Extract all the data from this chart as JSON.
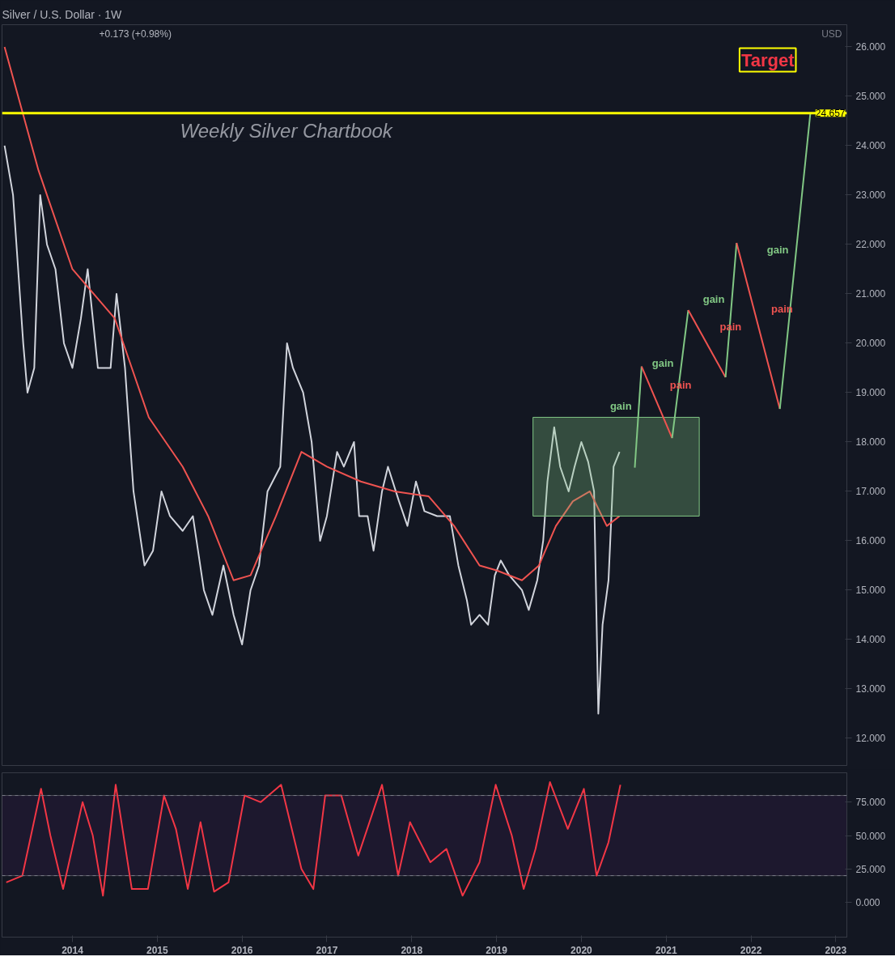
{
  "chart_data": [
    {
      "type": "line",
      "title": "Silver / U.S. Dollar · 1W",
      "xlim": [
        2013.17,
        2023.13
      ],
      "ylim": [
        11.45,
        26.45
      ],
      "xticks": [
        2014,
        2015,
        2016,
        2017,
        2018,
        2019,
        2020,
        2021,
        2022,
        2023
      ],
      "yticks": [
        {
          "value": 12,
          "label": "12.000"
        },
        {
          "value": 13,
          "label": "13.000"
        },
        {
          "value": 14,
          "label": "14.000"
        },
        {
          "value": 15,
          "label": "15.000"
        },
        {
          "value": 16,
          "label": "16.000"
        },
        {
          "value": 17,
          "label": "17.000"
        },
        {
          "value": 18,
          "label": "18.000"
        },
        {
          "value": 19,
          "label": "19.000"
        },
        {
          "value": 20,
          "label": "20.000"
        },
        {
          "value": 21,
          "label": "21.000"
        },
        {
          "value": 22,
          "label": "22.000"
        },
        {
          "value": 23,
          "label": "23.000"
        },
        {
          "value": 24,
          "label": "24.000"
        },
        {
          "value": 25,
          "label": "25.000"
        },
        {
          "value": 26,
          "label": "26.000"
        }
      ],
      "tick_labels": "y",
      "grid": false,
      "line_style": "solid",
      "series": [
        {
          "color": "#d1d4dc",
          "x": [
            2013.2,
            2013.3,
            2013.42,
            2013.47,
            2013.55,
            2013.62,
            2013.7,
            2013.8,
            2013.9,
            2014.0,
            2014.1,
            2014.18,
            2014.3,
            2014.45,
            2014.52,
            2014.62,
            2014.72,
            2014.85,
            2014.95,
            2015.05,
            2015.15,
            2015.3,
            2015.42,
            2015.55,
            2015.65,
            2015.78,
            2015.9,
            2016.0,
            2016.1,
            2016.2,
            2016.3,
            2016.45,
            2016.53,
            2016.6,
            2016.72,
            2016.82,
            2016.92,
            2017.0,
            2017.12,
            2017.2,
            2017.32,
            2017.38,
            2017.48,
            2017.55,
            2017.65,
            2017.72,
            2017.85,
            2017.95,
            2018.05,
            2018.15,
            2018.3,
            2018.45,
            2018.55,
            2018.65,
            2018.7,
            2018.8,
            2018.9,
            2018.98,
            2019.05,
            2019.15,
            2019.3,
            2019.38,
            2019.48,
            2019.55,
            2019.6,
            2019.68,
            2019.75,
            2019.85,
            2019.92,
            2020.0,
            2020.08,
            2020.15,
            2020.2,
            2020.25,
            2020.32,
            2020.38,
            2020.45
          ],
          "values": [
            24.0,
            23.0,
            20.0,
            19.0,
            19.5,
            23.0,
            22.0,
            21.5,
            20.0,
            19.5,
            20.5,
            21.5,
            19.5,
            19.5,
            21.0,
            19.5,
            17.0,
            15.5,
            15.8,
            17.0,
            16.5,
            16.2,
            16.5,
            15.0,
            14.5,
            15.5,
            14.5,
            13.9,
            15.0,
            15.5,
            17.0,
            17.5,
            20.0,
            19.5,
            19.0,
            18.0,
            16.0,
            16.5,
            17.8,
            17.5,
            18.0,
            16.5,
            16.5,
            15.8,
            17.0,
            17.5,
            16.8,
            16.3,
            17.2,
            16.6,
            16.5,
            16.5,
            15.5,
            14.8,
            14.3,
            14.5,
            14.3,
            15.3,
            15.6,
            15.3,
            15.0,
            14.6,
            15.2,
            16.0,
            17.2,
            18.3,
            17.5,
            17.0,
            17.5,
            18.0,
            17.6,
            17.0,
            12.5,
            14.3,
            15.2,
            17.5,
            17.8
          ]
        },
        {
          "color": "#ef5350",
          "x": [
            2013.2,
            2013.6,
            2014.0,
            2014.5,
            2014.9,
            2015.3,
            2015.6,
            2015.9,
            2016.1,
            2016.4,
            2016.7,
            2017.0,
            2017.4,
            2017.8,
            2018.2,
            2018.5,
            2018.8,
            2019.0,
            2019.3,
            2019.5,
            2019.7,
            2019.9,
            2020.1,
            2020.3,
            2020.45
          ],
          "values": [
            26.0,
            23.5,
            21.5,
            20.5,
            18.5,
            17.5,
            16.5,
            15.2,
            15.3,
            16.5,
            17.8,
            17.5,
            17.2,
            17.0,
            16.9,
            16.3,
            15.5,
            15.4,
            15.2,
            15.5,
            16.3,
            16.8,
            17.0,
            16.3,
            16.5
          ]
        },
        {
          "type": "area",
          "color": "#81c784",
          "x": [
            2019.43,
            2021.39
          ],
          "values": [
            null,
            null
          ],
          "lower": [
            16.5,
            16.5
          ],
          "upper": [
            18.5,
            18.5
          ]
        },
        {
          "color": "#81c784",
          "x": [
            2020.63,
            2020.71
          ],
          "values": [
            17.48,
            19.53
          ]
        },
        {
          "color": "#ef5350",
          "x": [
            2020.71,
            2021.07
          ],
          "values": [
            19.53,
            18.08
          ]
        },
        {
          "color": "#81c784",
          "x": [
            2021.07,
            2021.26
          ],
          "values": [
            18.08,
            20.67
          ]
        },
        {
          "color": "#ef5350",
          "x": [
            2021.26,
            2021.7
          ],
          "values": [
            20.67,
            19.31
          ]
        },
        {
          "color": "#81c784",
          "x": [
            2021.7,
            2021.83
          ],
          "values": [
            19.31,
            22.03
          ]
        },
        {
          "color": "#ef5350",
          "x": [
            2021.83,
            2022.34
          ],
          "values": [
            22.03,
            18.67
          ]
        },
        {
          "color": "#81c784",
          "x": [
            2022.34,
            2022.7
          ],
          "values": [
            18.67,
            24.66
          ]
        }
      ],
      "ref_lines": [
        {
          "axis": "y",
          "value": 24.657,
          "label": "24.657",
          "color": "#ffff00"
        }
      ],
      "annotations": [
        "+0.173 (+0.98%)",
        "USD",
        "Weekly Silver Chartbook",
        "Target",
        {
          "text": "gain",
          "x": 2020.67,
          "y": 18.505
        },
        {
          "text": "pain",
          "x": 2020.89,
          "y": 18.805
        },
        {
          "text": "gain",
          "x": 2021.165,
          "y": 19.375
        },
        {
          "text": "pain",
          "x": 2021.48,
          "y": 19.99
        },
        {
          "text": "gain",
          "x": 2021.765,
          "y": 20.67
        },
        {
          "text": "pain",
          "x": 2022.085,
          "y": 20.35
        },
        {
          "text": "gain",
          "x": 2022.52,
          "y": 21.665
        }
      ]
    },
    {
      "type": "line",
      "xlim": [
        2013.17,
        2023.13
      ],
      "ylim": [
        -26,
        97
      ],
      "xticks": [
        2014,
        2015,
        2016,
        2017,
        2018,
        2019,
        2020,
        2021,
        2022,
        2023
      ],
      "yticks": [
        {
          "value": 0,
          "label": "0.000"
        },
        {
          "value": 25,
          "label": "25.000"
        },
        {
          "value": 50,
          "label": "50.000"
        },
        {
          "value": 75,
          "label": "75.000"
        }
      ],
      "grid": false,
      "series": [
        {
          "color": "#f23645",
          "x": [
            2013.22,
            2013.41,
            2013.63,
            2013.74,
            2013.89,
            2014.12,
            2014.24,
            2014.36,
            2014.51,
            2014.7,
            2014.89,
            2015.08,
            2015.22,
            2015.36,
            2015.51,
            2015.67,
            2015.84,
            2016.03,
            2016.22,
            2016.46,
            2016.7,
            2016.84,
            2016.98,
            2017.17,
            2017.37,
            2017.65,
            2017.84,
            2017.98,
            2018.22,
            2018.41,
            2018.6,
            2018.8,
            2018.99,
            2019.18,
            2019.32,
            2019.46,
            2019.63,
            2019.84,
            2020.03,
            2020.18,
            2020.32,
            2020.46
          ],
          "values": [
            15,
            20,
            85,
            50,
            10,
            75,
            50,
            5,
            88,
            10,
            10,
            80,
            55,
            10,
            60,
            8,
            15,
            80,
            75,
            88,
            25,
            10,
            80,
            80,
            35,
            88,
            20,
            60,
            30,
            40,
            5,
            30,
            88,
            50,
            10,
            40,
            90,
            55,
            85,
            20,
            45,
            88
          ]
        }
      ],
      "ref_lines": [
        {
          "axis": "y",
          "value": 80,
          "line_style": "dashed",
          "color": "#787b86"
        },
        {
          "axis": "y",
          "value": 20,
          "line_style": "dashed",
          "color": "#787b86"
        }
      ],
      "bands": [
        {
          "axis": "y",
          "from": 20,
          "to": 80,
          "color": "#1f1830"
        }
      ]
    }
  ]
}
